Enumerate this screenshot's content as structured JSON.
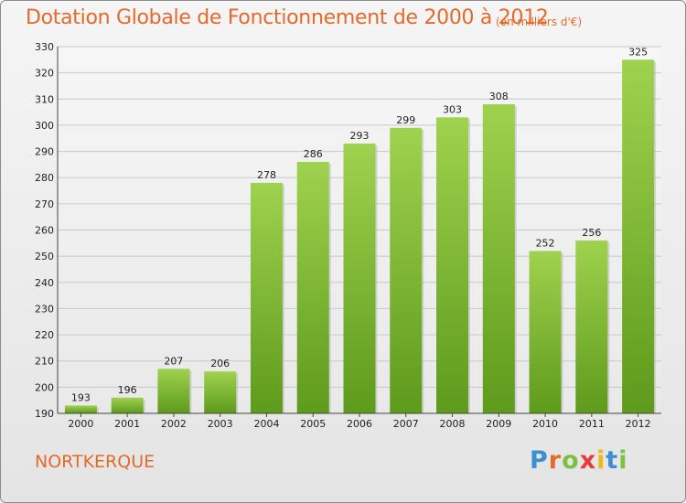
{
  "header": {
    "title": "Dotation Globale de Fonctionnement de 2000 à 2012",
    "subtitle": "(en milliers d'€)"
  },
  "footer": {
    "commune": "NORTKERQUE",
    "logo": {
      "letters": [
        "P",
        "r",
        "o",
        "x",
        "i",
        "t",
        "i"
      ],
      "colors": [
        "#3d8fd3",
        "#e8692a",
        "#7cc242",
        "#e83c3c",
        "#f0b71c",
        "#3d8fd3",
        "#7cc242"
      ]
    }
  },
  "chart_data": {
    "type": "bar",
    "title": "Dotation Globale de Fonctionnement de 2000 à 2012",
    "subtitle": "(en milliers d'€)",
    "categories": [
      "2000",
      "2001",
      "2002",
      "2003",
      "2004",
      "2005",
      "2006",
      "2007",
      "2008",
      "2009",
      "2010",
      "2011",
      "2012"
    ],
    "values": [
      193,
      196,
      207,
      206,
      278,
      286,
      293,
      299,
      303,
      308,
      252,
      256,
      325
    ],
    "ylim": [
      190,
      330
    ],
    "yticks": [
      190,
      200,
      210,
      220,
      230,
      240,
      250,
      260,
      270,
      280,
      290,
      300,
      310,
      320,
      330
    ],
    "grid": true,
    "bar_color": "#8ac43e",
    "bar_color_dark": "#5e9a1c"
  }
}
